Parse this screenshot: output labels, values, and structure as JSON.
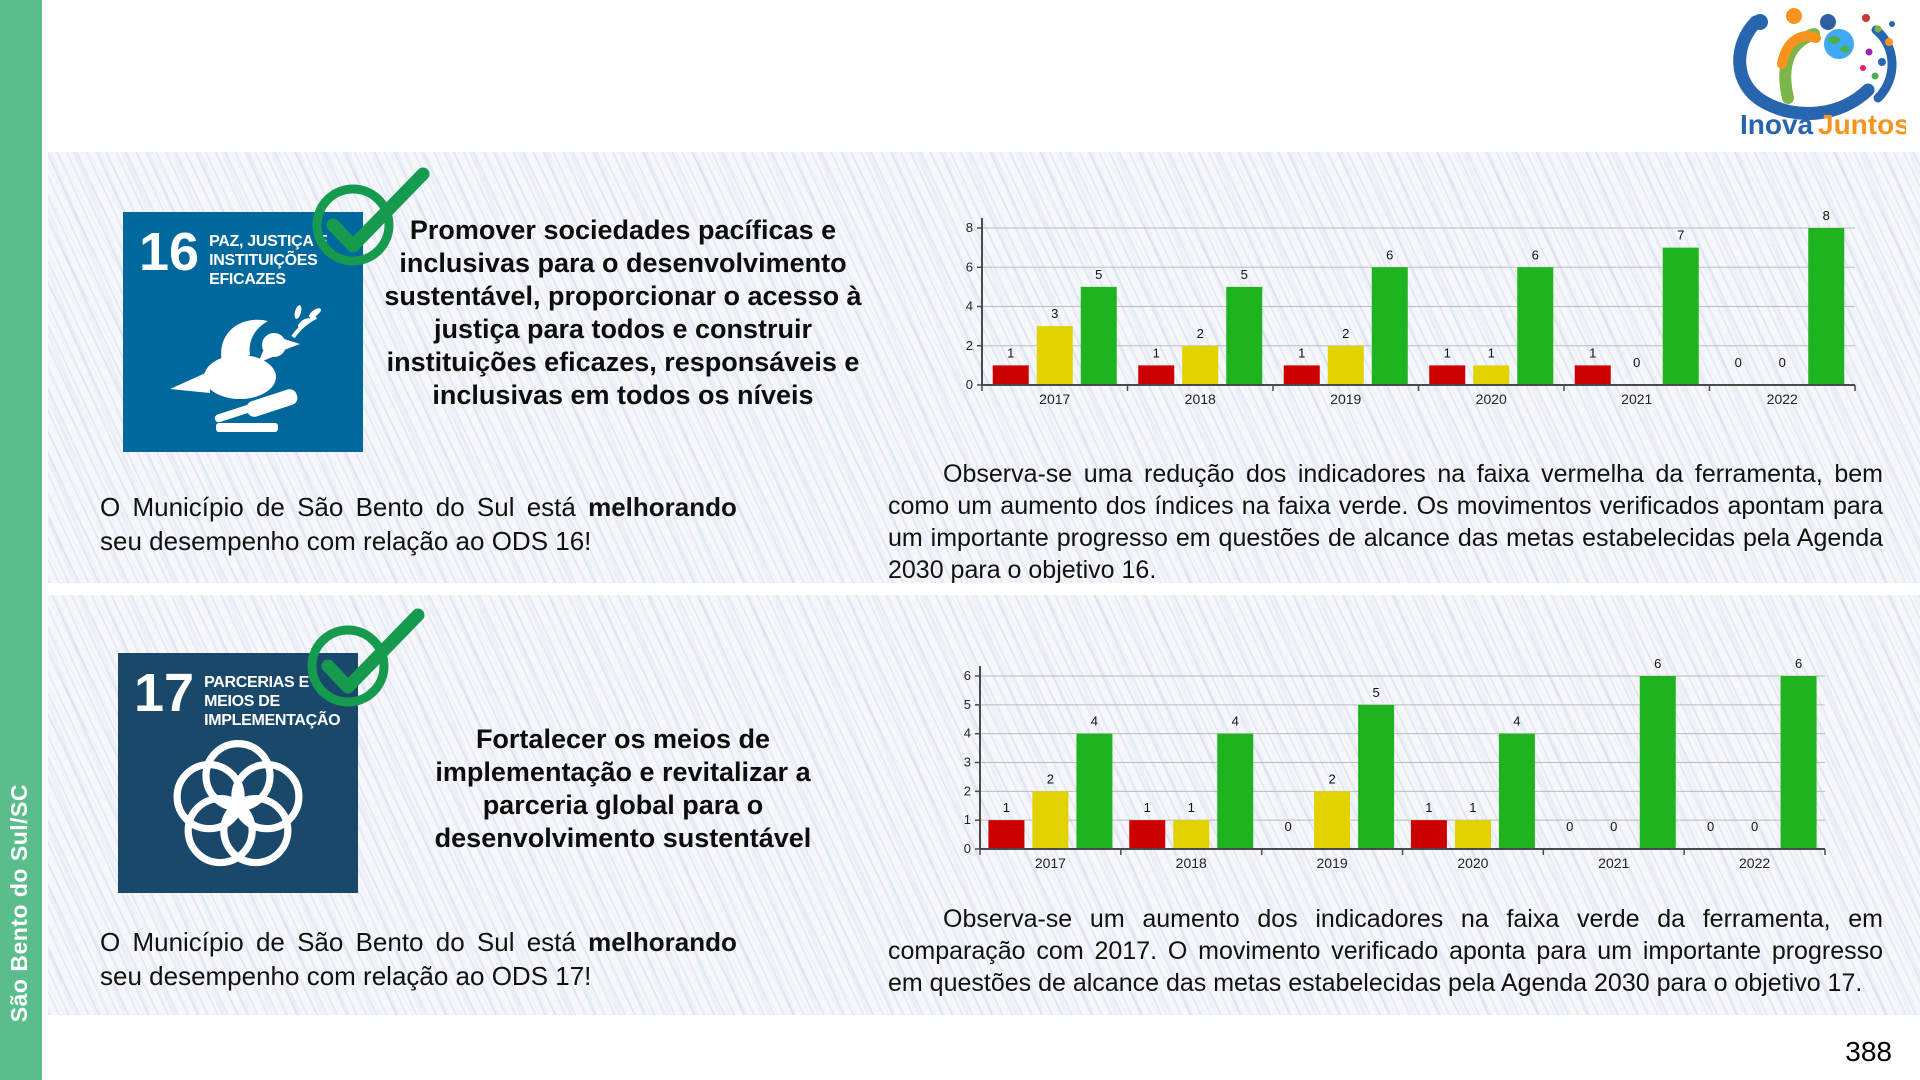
{
  "page": {
    "number": "388"
  },
  "sidebar": {
    "label": "São Bento do Sul/SC"
  },
  "logo": {
    "line1": "Inova",
    "line2": "Juntos"
  },
  "colors": {
    "sidebar_green": "#5ABD8C",
    "sdg16_blue": "#00689D",
    "sdg17_navy": "#19486A",
    "check_green": "#169B4E",
    "bar_red": "#CC0000",
    "bar_yellow": "#E2D200",
    "bar_green": "#1FB41F"
  },
  "sections": [
    {
      "goal_number": "16",
      "goal_title": "PAZ, JUSTIÇA E INSTITUIÇÕES EFICAZES",
      "description": "Promover sociedades pacíficas e inclusivas para o desenvolvimento sustentável, proporcionar o acesso à justiça para todos e construir instituições eficazes, responsáveis e inclusivas em todos os níveis",
      "status_prefix": "O Município de São Bento do Sul está",
      "status_highlight": "melhorando",
      "status_suffix": "seu desempenho com relação ao ODS 16!",
      "analysis": "Observa-se uma redução dos indicadores na faixa vermelha da ferramenta, bem como um aumento dos índices na faixa verde. Os movimentos verificados apontam para um importante progresso em questões de alcance das metas estabelecidas pela Agenda 2030 para o objetivo 16."
    },
    {
      "goal_number": "17",
      "goal_title": "PARCERIAS E MEIOS DE IMPLEMENTAÇÃO",
      "description": "Fortalecer os meios de implementação e revitalizar a parceria global para o desenvolvimento sustentável",
      "status_prefix": "O Município de São Bento do Sul está",
      "status_highlight": "melhorando",
      "status_suffix": "seu desempenho com relação ao ODS 17!",
      "analysis": "Observa-se um aumento dos indicadores na faixa verde da ferramenta, em comparação com 2017. O movimento verificado aponta para um importante progresso em questões de alcance das metas estabelecidas pela Agenda 2030 para o objetivo 17."
    }
  ],
  "chart_data": [
    {
      "type": "bar",
      "title": "",
      "categories": [
        "2017",
        "2018",
        "2019",
        "2020",
        "2021",
        "2022"
      ],
      "series": [
        {
          "name": "faixa vermelha",
          "color": "#CC0000",
          "values": [
            1,
            1,
            1,
            1,
            1,
            0
          ]
        },
        {
          "name": "faixa amarela",
          "color": "#E2D200",
          "values": [
            3,
            2,
            2,
            1,
            0,
            0
          ]
        },
        {
          "name": "faixa verde",
          "color": "#1FB41F",
          "values": [
            5,
            5,
            6,
            6,
            7,
            8
          ]
        }
      ],
      "xlabel": "",
      "ylabel": "",
      "ylim": [
        0,
        8
      ],
      "yticks": [
        0,
        2,
        4,
        6,
        8
      ],
      "grid": true,
      "legend": "none",
      "data_labels": true
    },
    {
      "type": "bar",
      "title": "",
      "categories": [
        "2017",
        "2018",
        "2019",
        "2020",
        "2021",
        "2022"
      ],
      "series": [
        {
          "name": "faixa vermelha",
          "color": "#CC0000",
          "values": [
            1,
            1,
            0,
            1,
            0,
            0
          ]
        },
        {
          "name": "faixa amarela",
          "color": "#E2D200",
          "values": [
            2,
            1,
            2,
            1,
            0,
            0
          ]
        },
        {
          "name": "faixa verde",
          "color": "#1FB41F",
          "values": [
            4,
            4,
            5,
            4,
            6,
            6
          ]
        }
      ],
      "xlabel": "",
      "ylabel": "",
      "ylim": [
        0,
        6
      ],
      "yticks": [
        0,
        1,
        2,
        3,
        4,
        5,
        6
      ],
      "grid": true,
      "legend": "none",
      "data_labels": true
    }
  ]
}
